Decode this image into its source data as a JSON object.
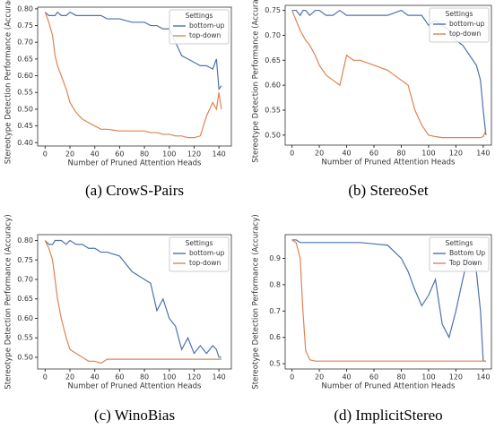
{
  "chart_data": [
    {
      "type": "line",
      "caption": "(a) CrowS-Pairs",
      "x_label": "Number of Pruned Attention Heads",
      "y_label": "Stereotype Detection Performance (Accuracy)",
      "legend_title": "Settings",
      "legend": "upper right",
      "x": [
        0,
        3,
        6,
        8,
        10,
        13,
        17,
        20,
        25,
        30,
        35,
        40,
        45,
        50,
        60,
        70,
        80,
        85,
        90,
        95,
        100,
        105,
        110,
        115,
        120,
        125,
        130,
        135,
        138,
        140,
        142
      ],
      "series": [
        {
          "name": "bottom-up",
          "color": "#4c72b0",
          "values": [
            0.79,
            0.78,
            0.78,
            0.78,
            0.79,
            0.78,
            0.78,
            0.79,
            0.78,
            0.78,
            0.78,
            0.78,
            0.78,
            0.77,
            0.77,
            0.76,
            0.76,
            0.75,
            0.75,
            0.74,
            0.74,
            0.7,
            0.66,
            0.65,
            0.64,
            0.63,
            0.63,
            0.62,
            0.65,
            0.56,
            0.57
          ]
        },
        {
          "name": "top-down",
          "color": "#dd8452",
          "values": [
            0.79,
            0.76,
            0.72,
            0.66,
            0.63,
            0.6,
            0.56,
            0.52,
            0.49,
            0.47,
            0.46,
            0.45,
            0.44,
            0.44,
            0.435,
            0.435,
            0.435,
            0.43,
            0.43,
            0.425,
            0.425,
            0.42,
            0.42,
            0.415,
            0.415,
            0.42,
            0.48,
            0.52,
            0.5,
            0.55,
            0.5
          ]
        }
      ],
      "xlim": [
        -6,
        150
      ],
      "xticks": [
        0,
        20,
        40,
        60,
        80,
        100,
        120,
        140
      ],
      "ylim": [
        0.39,
        0.805
      ],
      "yticks": [
        {
          "value": 0.4,
          "label": "0.40"
        },
        {
          "value": 0.45,
          "label": "0.45"
        },
        {
          "value": 0.5,
          "label": "0.50"
        },
        {
          "value": 0.55,
          "label": "0.55"
        },
        {
          "value": 0.6,
          "label": "0.60"
        },
        {
          "value": 0.65,
          "label": "0.65"
        },
        {
          "value": 0.7,
          "label": "0.70"
        },
        {
          "value": 0.75,
          "label": "0.75"
        },
        {
          "value": 0.8,
          "label": "0.80"
        }
      ]
    },
    {
      "type": "line",
      "caption": "(b) StereoSet",
      "x_label": "Number of Pruned Attention Heads",
      "y_label": "Stereotype Detection Performance (Accuracy)",
      "legend_title": "Settings",
      "legend": "upper right",
      "x": [
        0,
        3,
        6,
        8,
        10,
        13,
        17,
        20,
        25,
        30,
        35,
        40,
        45,
        50,
        60,
        70,
        80,
        85,
        90,
        95,
        100,
        105,
        110,
        115,
        120,
        125,
        130,
        135,
        138,
        140,
        142
      ],
      "series": [
        {
          "name": "bottom-up",
          "color": "#4c72b0",
          "values": [
            0.75,
            0.75,
            0.74,
            0.75,
            0.75,
            0.74,
            0.75,
            0.75,
            0.74,
            0.74,
            0.75,
            0.74,
            0.74,
            0.74,
            0.74,
            0.74,
            0.75,
            0.74,
            0.74,
            0.74,
            0.72,
            0.73,
            0.72,
            0.71,
            0.69,
            0.68,
            0.66,
            0.64,
            0.61,
            0.55,
            0.5
          ]
        },
        {
          "name": "top-down",
          "color": "#dd8452",
          "values": [
            0.75,
            0.73,
            0.71,
            0.7,
            0.69,
            0.68,
            0.66,
            0.64,
            0.62,
            0.61,
            0.6,
            0.66,
            0.65,
            0.65,
            0.64,
            0.63,
            0.61,
            0.6,
            0.55,
            0.52,
            0.5,
            0.497,
            0.495,
            0.495,
            0.495,
            0.495,
            0.495,
            0.495,
            0.495,
            0.497,
            0.51
          ]
        }
      ],
      "xlim": [
        -5,
        146
      ],
      "xticks": [
        0,
        20,
        40,
        60,
        80,
        100,
        120,
        140
      ],
      "ylim": [
        0.48,
        0.76
      ],
      "yticks": [
        {
          "value": 0.5,
          "label": "0.50"
        },
        {
          "value": 0.55,
          "label": "0.55"
        },
        {
          "value": 0.6,
          "label": "0.60"
        },
        {
          "value": 0.65,
          "label": "0.65"
        },
        {
          "value": 0.7,
          "label": "0.70"
        },
        {
          "value": 0.75,
          "label": "0.75"
        }
      ]
    },
    {
      "type": "line",
      "caption": "(c) WinoBias",
      "x_label": "Number of Pruned Attention Heads",
      "y_label": "Stereotype Detection Performance (Accuracy)",
      "legend_title": "Settings",
      "legend": "upper right",
      "x": [
        0,
        3,
        6,
        8,
        10,
        13,
        17,
        20,
        25,
        30,
        35,
        40,
        45,
        50,
        60,
        70,
        80,
        85,
        90,
        95,
        100,
        105,
        110,
        115,
        120,
        125,
        130,
        135,
        138,
        140,
        142
      ],
      "series": [
        {
          "name": "bottom-up",
          "color": "#4c72b0",
          "values": [
            0.8,
            0.79,
            0.79,
            0.8,
            0.8,
            0.8,
            0.79,
            0.8,
            0.79,
            0.79,
            0.78,
            0.78,
            0.77,
            0.77,
            0.76,
            0.72,
            0.7,
            0.69,
            0.62,
            0.65,
            0.6,
            0.58,
            0.52,
            0.55,
            0.51,
            0.53,
            0.51,
            0.53,
            0.52,
            0.5,
            0.5
          ]
        },
        {
          "name": "top-down",
          "color": "#dd8452",
          "values": [
            0.8,
            0.78,
            0.75,
            0.7,
            0.65,
            0.6,
            0.55,
            0.52,
            0.51,
            0.5,
            0.49,
            0.49,
            0.485,
            0.495,
            0.495,
            0.495,
            0.495,
            0.495,
            0.495,
            0.495,
            0.495,
            0.495,
            0.495,
            0.495,
            0.495,
            0.495,
            0.495,
            0.495,
            0.495,
            0.495,
            0.495
          ]
        }
      ],
      "xlim": [
        -6,
        150
      ],
      "xticks": [
        0,
        20,
        40,
        60,
        80,
        100,
        120,
        140
      ],
      "ylim": [
        0.47,
        0.815
      ],
      "yticks": [
        {
          "value": 0.5,
          "label": "0.50"
        },
        {
          "value": 0.55,
          "label": "0.55"
        },
        {
          "value": 0.6,
          "label": "0.60"
        },
        {
          "value": 0.65,
          "label": "0.65"
        },
        {
          "value": 0.7,
          "label": "0.70"
        },
        {
          "value": 0.75,
          "label": "0.75"
        },
        {
          "value": 0.8,
          "label": "0.80"
        }
      ]
    },
    {
      "type": "line",
      "caption": "(d) ImplicitStereo",
      "x_label": "Number of Pruned Attention Heads",
      "y_label": "Stereotype Detection Performance (Accuracy)",
      "legend_title": "Settings",
      "legend": "upper right",
      "x": [
        0,
        3,
        6,
        8,
        10,
        13,
        17,
        20,
        25,
        30,
        35,
        40,
        45,
        50,
        60,
        70,
        80,
        85,
        90,
        95,
        100,
        105,
        110,
        115,
        120,
        125,
        130,
        135,
        138,
        140,
        142
      ],
      "series": [
        {
          "name": "Bottom Up",
          "color": "#4c72b0",
          "values": [
            0.97,
            0.97,
            0.96,
            0.96,
            0.96,
            0.96,
            0.96,
            0.96,
            0.96,
            0.96,
            0.96,
            0.96,
            0.96,
            0.96,
            0.955,
            0.95,
            0.9,
            0.85,
            0.78,
            0.72,
            0.76,
            0.82,
            0.65,
            0.6,
            0.7,
            0.82,
            0.93,
            0.85,
            0.7,
            0.51,
            0.51
          ]
        },
        {
          "name": "Top Down",
          "color": "#dd8452",
          "values": [
            0.97,
            0.96,
            0.9,
            0.7,
            0.55,
            0.515,
            0.51,
            0.51,
            0.51,
            0.51,
            0.51,
            0.51,
            0.51,
            0.51,
            0.51,
            0.51,
            0.51,
            0.51,
            0.51,
            0.51,
            0.51,
            0.51,
            0.51,
            0.51,
            0.51,
            0.51,
            0.51,
            0.51,
            0.51,
            0.51,
            0.51
          ]
        }
      ],
      "xlim": [
        -5,
        146
      ],
      "xticks": [
        0,
        20,
        40,
        60,
        80,
        100,
        120,
        140
      ],
      "ylim": [
        0.48,
        0.99
      ],
      "yticks": [
        0.5,
        0.6,
        0.7,
        0.8,
        0.9
      ]
    }
  ]
}
